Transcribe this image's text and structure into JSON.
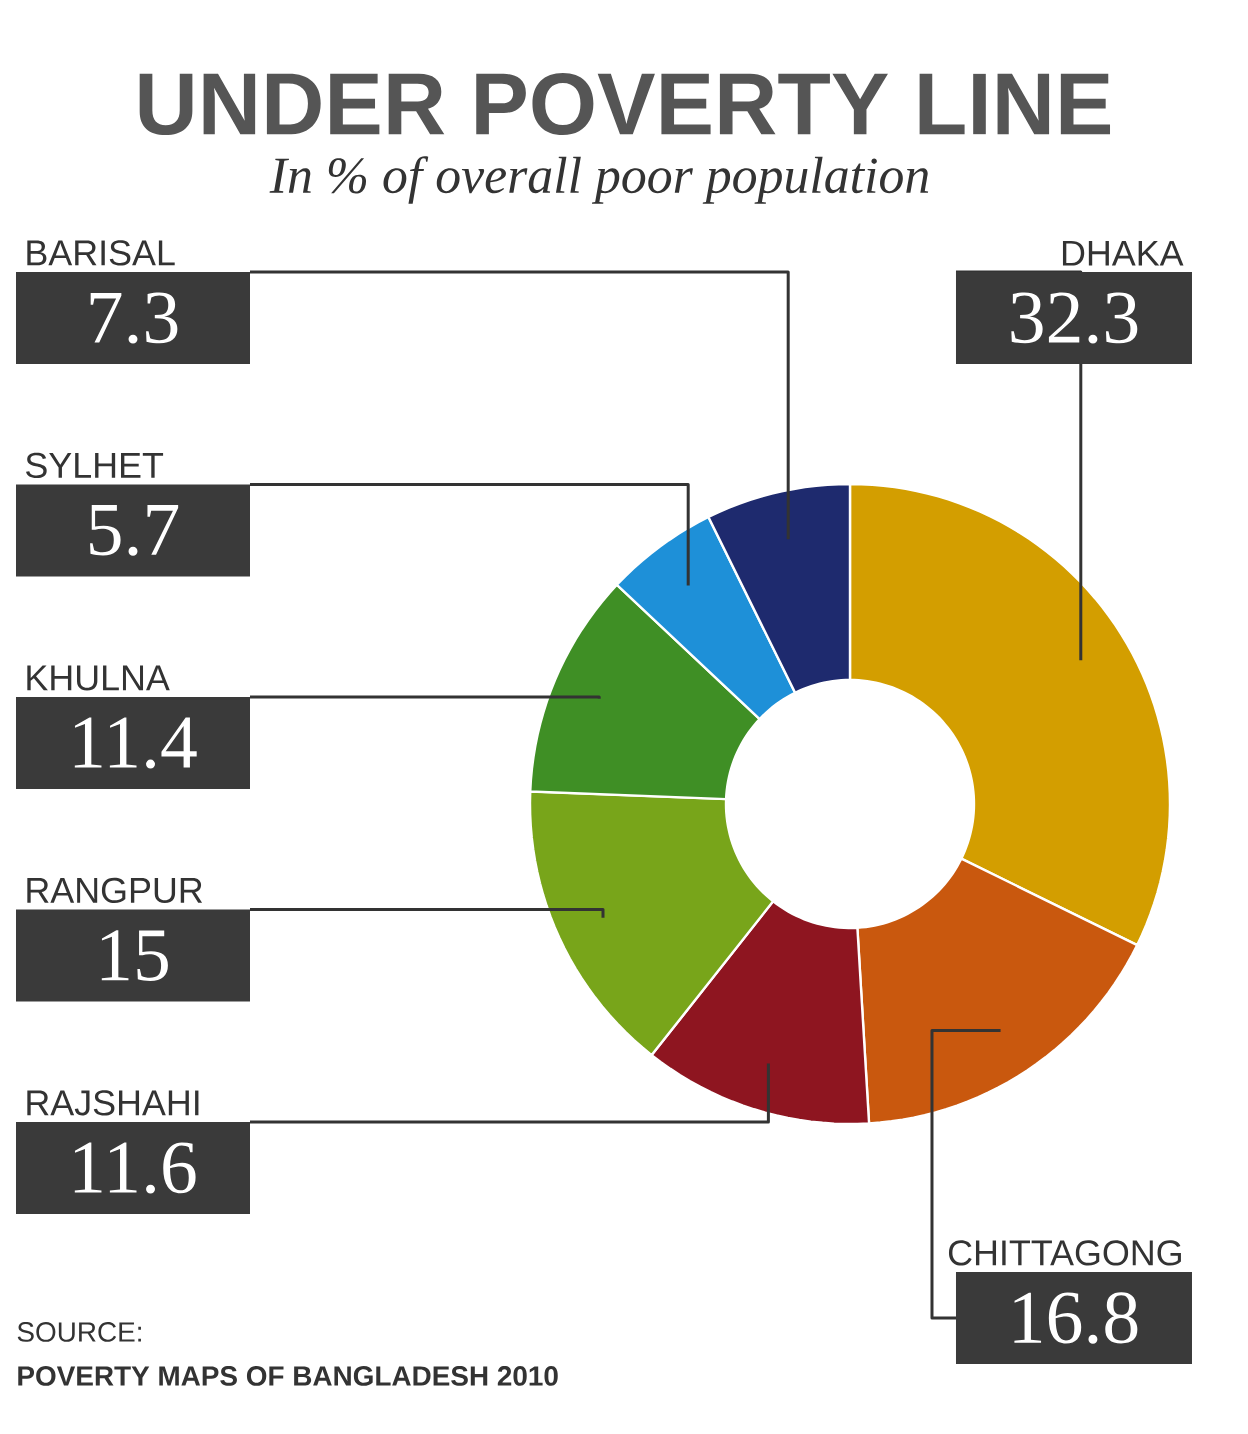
{
  "chart_data": {
    "type": "donut",
    "title": "UNDER POVERTY LINE",
    "subtitle": "In % of overall poor population",
    "categories": [
      "DHAKA",
      "CHITTAGONG",
      "RAJSHAHI",
      "RANGPUR",
      "KHULNA",
      "SYLHET",
      "BARISAL"
    ],
    "values": [
      32.3,
      16.8,
      11.6,
      15,
      11.4,
      5.7,
      7.3
    ],
    "colors": [
      "#d39e00",
      "#c9580e",
      "#8e1520",
      "#78a51a",
      "#3f8f25",
      "#1e90d8",
      "#1e2a6e"
    ],
    "data_labels": true,
    "annotations": [
      "SOURCE:",
      "POVERTY MAPS OF BANGLADESH 2010"
    ]
  }
}
